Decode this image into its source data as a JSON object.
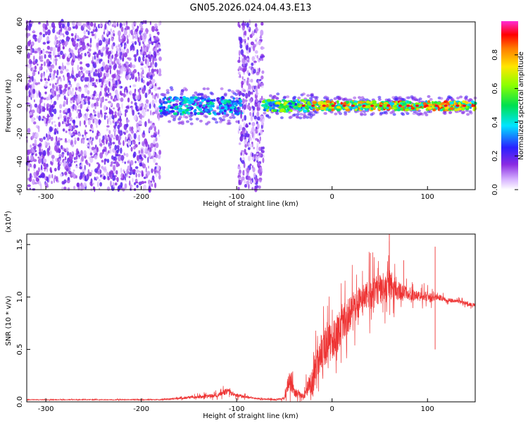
{
  "figure": {
    "title": "GN05.2026.024.04.43.E13"
  },
  "chart_data": [
    {
      "type": "heatmap",
      "title": "GN05.2026.024.04.43.E13",
      "xlabel": "Height of straight line (km)",
      "ylabel": "Frequency (Hz)",
      "xlim": [
        -320,
        150
      ],
      "ylim": [
        -60,
        60
      ],
      "x_ticks": [
        "-300",
        "-200",
        "-100",
        "0",
        "100"
      ],
      "y_ticks": [
        "-60",
        "-40",
        "-20",
        "0",
        "20",
        "40",
        "60"
      ],
      "colorbar": {
        "label": "Normalized spectral amplitude",
        "range": [
          0,
          1
        ],
        "ticks": [
          "0.0",
          "0.2",
          "0.4",
          "0.6",
          "0.8"
        ],
        "colormap": "rainbow (white-violet-blue-cyan-green-yellow-red-magenta)"
      },
      "bands": [
        {
          "x_range": [
            -320,
            -180
          ],
          "freq_range": [
            -60,
            60
          ],
          "level": 0.15
        },
        {
          "x_range": [
            -180,
            -95
          ],
          "freq_range": [
            -6,
            6
          ],
          "level": 0.35
        },
        {
          "x_range": [
            -98,
            -72
          ],
          "freq_range": [
            -60,
            60
          ],
          "level": 0.15
        },
        {
          "x_range": [
            -72,
            -20
          ],
          "freq_range": [
            -4,
            4
          ],
          "level": 0.5
        },
        {
          "x_range": [
            -20,
            150
          ],
          "freq_range": [
            -3,
            3
          ],
          "level": 0.65
        }
      ],
      "grid": false
    },
    {
      "type": "line",
      "xlabel": "Height of straight line (km)",
      "ylabel": "SNR (10 * v/v)",
      "y_multiplier": "(x10^4)",
      "xlim": [
        -320,
        150
      ],
      "ylim": [
        0,
        1.6
      ],
      "x_ticks": [
        "-300",
        "-200",
        "-100",
        "0",
        "100"
      ],
      "y_ticks": [
        "0.0",
        "0.5",
        "1.0",
        "1.5"
      ],
      "color": "#ee3333",
      "series": [
        {
          "x": [
            -320,
            -250,
            -180,
            -150,
            -120,
            -110,
            -100,
            -80,
            -60,
            -50,
            -45,
            -40,
            -30,
            -20,
            -10,
            0,
            10,
            20,
            30,
            40,
            50,
            60,
            70,
            80,
            90,
            100,
            105,
            110,
            120,
            130,
            140,
            150
          ],
          "values": [
            0.02,
            0.02,
            0.02,
            0.04,
            0.06,
            0.1,
            0.06,
            0.03,
            0.02,
            0.03,
            0.2,
            0.1,
            0.05,
            0.2,
            0.5,
            0.55,
            0.7,
            0.85,
            0.95,
            1.0,
            1.05,
            1.1,
            1.05,
            1.02,
            1.0,
            1.0,
            0.98,
            1.0,
            0.97,
            0.96,
            0.94,
            0.92
          ],
          "noise": [
            0.005,
            0.005,
            0.008,
            0.02,
            0.03,
            0.05,
            0.03,
            0.01,
            0.01,
            0.02,
            0.15,
            0.08,
            0.04,
            0.25,
            0.3,
            0.3,
            0.3,
            0.3,
            0.25,
            0.25,
            0.25,
            0.25,
            0.15,
            0.1,
            0.08,
            0.08,
            0.08,
            0.05,
            0.03,
            0.03,
            0.03,
            0.03
          ]
        }
      ],
      "spikes": [
        [
          60,
          1.6
        ],
        [
          108,
          1.48
        ],
        [
          108,
          0.5
        ],
        [
          40,
          1.42
        ],
        [
          75,
          1.35
        ]
      ]
    }
  ]
}
